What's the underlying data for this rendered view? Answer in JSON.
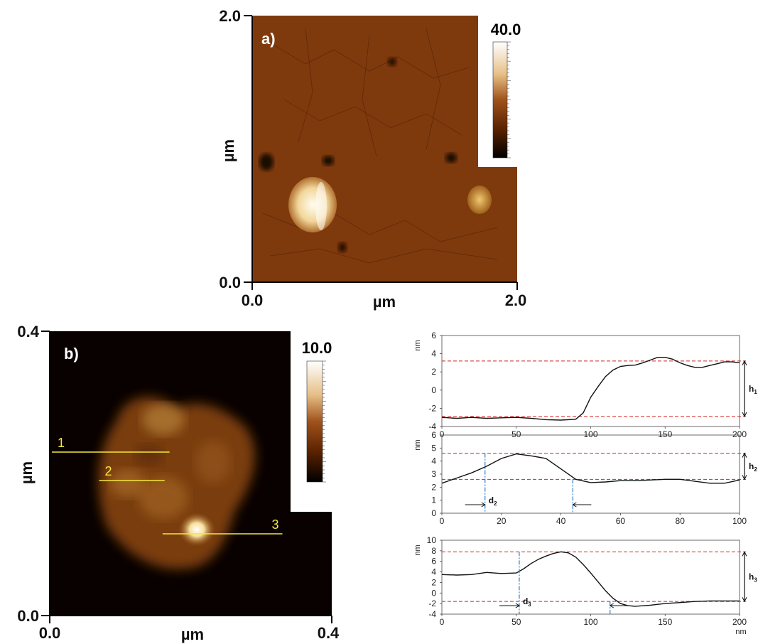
{
  "chart_data": [
    {
      "type": "heatmap",
      "panel_label": "a)",
      "x_axis": {
        "label": "µm",
        "min_label": "0.0",
        "max_label": "2.0",
        "range": [
          0,
          2.0
        ]
      },
      "y_axis": {
        "label": "µm",
        "min_label": "0.0",
        "max_label": "2.0",
        "range": [
          0,
          2.0
        ]
      },
      "colorbar": {
        "max_label": "40.0",
        "max": 40.0,
        "colormap": [
          "#000000",
          "#5a2200",
          "#a0521c",
          "#e6bf86",
          "#ffffff"
        ]
      },
      "grain_features": [
        {
          "x": 0.45,
          "y": 0.56,
          "kind": "bright particle"
        },
        {
          "x": 1.7,
          "y": 0.62,
          "kind": "small particle"
        },
        {
          "x": 0.1,
          "y": 0.9,
          "kind": "dark pit"
        },
        {
          "x": 0.55,
          "y": 0.92,
          "kind": "dark pit"
        },
        {
          "x": 1.5,
          "y": 0.95,
          "kind": "dark pit"
        },
        {
          "x": 1.05,
          "y": 1.7,
          "kind": "dark pit"
        },
        {
          "x": 0.68,
          "y": 0.27,
          "kind": "dark pit"
        }
      ]
    },
    {
      "type": "heatmap",
      "panel_label": "b)",
      "x_axis": {
        "label": "µm",
        "min_label": "0.0",
        "max_label": "0.4",
        "range": [
          0,
          0.4
        ]
      },
      "y_axis": {
        "label": "µm",
        "min_label": "0.0",
        "max_label": "0.4",
        "range": [
          0,
          0.4
        ]
      },
      "colorbar": {
        "max_label": "10.0",
        "max": 10.0,
        "colormap": [
          "#000000",
          "#5a2200",
          "#a0521c",
          "#e6bf86",
          "#ffffff"
        ]
      },
      "profile_lines": [
        {
          "label": "1",
          "x": [
            0.003,
            0.17
          ],
          "y": 0.23
        },
        {
          "label": "2",
          "x": [
            0.07,
            0.163
          ],
          "y": 0.19
        },
        {
          "label": "3",
          "x": [
            0.16,
            0.33
          ],
          "y": 0.115
        }
      ]
    },
    {
      "type": "line",
      "ylabel": "nm",
      "xlabel": "",
      "xlim": [
        0,
        200
      ],
      "ylim": [
        -4,
        6
      ],
      "xticks": [
        0,
        50,
        100,
        150,
        200
      ],
      "yticks": [
        -4,
        -2,
        0,
        2,
        4,
        6
      ],
      "grid": false,
      "reference_lines": [
        3.2,
        -2.9
      ],
      "height_marker": "h1",
      "series": [
        {
          "x": [
            0,
            10,
            20,
            30,
            40,
            50,
            60,
            70,
            80,
            90,
            95,
            100,
            105,
            110,
            115,
            120,
            125,
            130,
            135,
            140,
            145,
            150,
            155,
            160,
            165,
            170,
            175,
            180,
            185,
            190,
            195,
            200
          ],
          "y": [
            -3.0,
            -3.1,
            -3.0,
            -3.1,
            -3.05,
            -3.0,
            -3.1,
            -3.25,
            -3.3,
            -3.2,
            -2.5,
            -0.8,
            0.4,
            1.5,
            2.2,
            2.6,
            2.7,
            2.75,
            3.0,
            3.3,
            3.6,
            3.6,
            3.4,
            3.0,
            2.7,
            2.5,
            2.5,
            2.7,
            2.9,
            3.1,
            3.1,
            3.0
          ]
        }
      ]
    },
    {
      "type": "line",
      "ylabel": "nm",
      "xlabel": "",
      "xlim": [
        0,
        100
      ],
      "ylim": [
        0,
        6
      ],
      "xticks": [
        0,
        20,
        40,
        60,
        80,
        100
      ],
      "yticks": [
        0,
        1,
        2,
        3,
        4,
        5,
        6
      ],
      "grid": false,
      "reference_lines": [
        4.6,
        2.6
      ],
      "height_marker": "h2",
      "width_marker": {
        "label": "d2",
        "x": [
          14.5,
          44
        ]
      },
      "series": [
        {
          "x": [
            0,
            5,
            10,
            15,
            20,
            25,
            30,
            35,
            40,
            45,
            50,
            55,
            60,
            65,
            70,
            75,
            80,
            85,
            90,
            95,
            100
          ],
          "y": [
            2.3,
            2.7,
            3.1,
            3.6,
            4.2,
            4.55,
            4.4,
            4.2,
            3.4,
            2.6,
            2.35,
            2.4,
            2.5,
            2.5,
            2.55,
            2.6,
            2.6,
            2.45,
            2.3,
            2.3,
            2.55
          ]
        }
      ]
    },
    {
      "type": "line",
      "ylabel": "nm",
      "xlabel": "nm",
      "xlim": [
        0,
        200
      ],
      "ylim": [
        -4,
        10
      ],
      "xticks": [
        0,
        50,
        100,
        150,
        200
      ],
      "yticks": [
        -4,
        -2,
        0,
        2,
        4,
        6,
        8,
        10
      ],
      "grid": false,
      "reference_lines": [
        7.8,
        -1.6
      ],
      "height_marker": "h3",
      "width_marker": {
        "label": "d3",
        "x": [
          52,
          113
        ]
      },
      "series": [
        {
          "x": [
            0,
            10,
            20,
            30,
            40,
            50,
            55,
            60,
            65,
            70,
            75,
            80,
            85,
            90,
            95,
            100,
            105,
            110,
            115,
            120,
            125,
            130,
            140,
            150,
            160,
            170,
            180,
            190,
            200
          ],
          "y": [
            3.5,
            3.4,
            3.5,
            3.9,
            3.7,
            3.8,
            4.6,
            5.6,
            6.4,
            7.0,
            7.5,
            7.8,
            7.6,
            6.8,
            5.4,
            3.8,
            2.1,
            0.4,
            -1.0,
            -2.0,
            -2.4,
            -2.5,
            -2.3,
            -2.0,
            -1.8,
            -1.6,
            -1.5,
            -1.5,
            -1.5
          ]
        }
      ]
    }
  ]
}
